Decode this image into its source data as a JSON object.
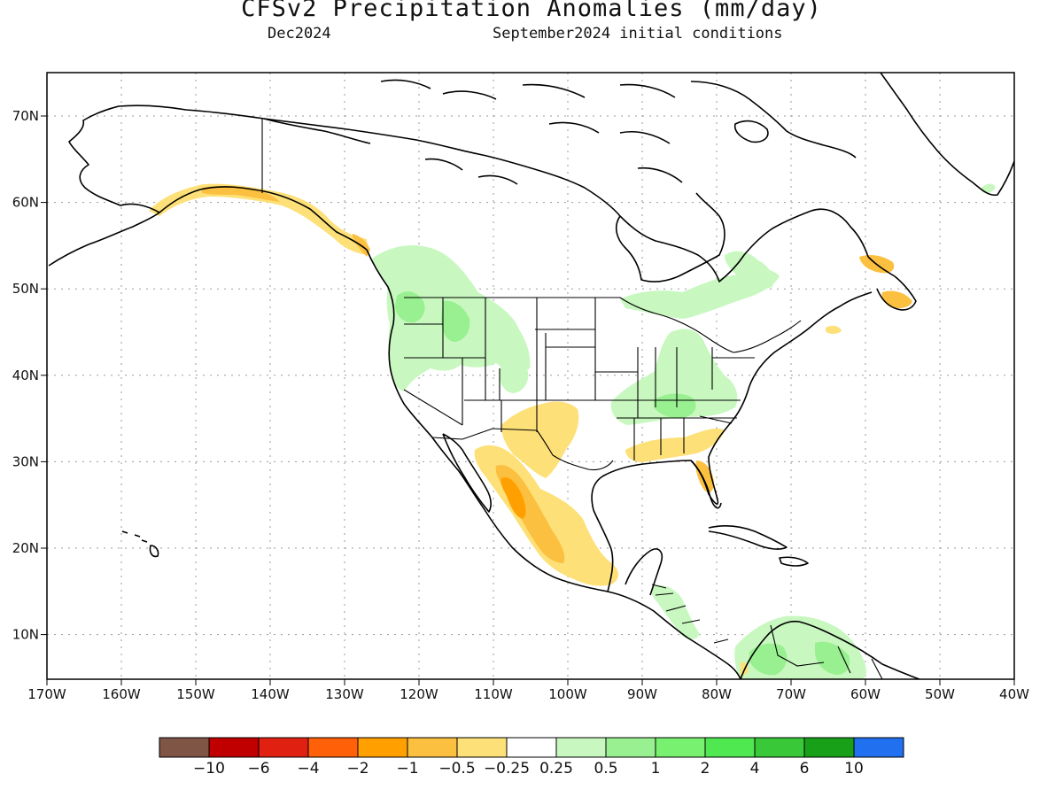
{
  "header": {
    "title": "CFSv2 Precipitation Anomalies (mm/day)",
    "lead_month": "Dec2024",
    "initial_conditions": "September2024 initial conditions"
  },
  "map": {
    "region": "North America",
    "lon_ticks": [
      "170W",
      "160W",
      "150W",
      "140W",
      "130W",
      "120W",
      "110W",
      "100W",
      "90W",
      "80W",
      "70W",
      "60W",
      "50W",
      "40W"
    ],
    "lat_ticks": [
      "70N",
      "60N",
      "50N",
      "40N",
      "30N",
      "20N",
      "10N"
    ],
    "land_color": "#ffffff",
    "outline_color": "#000000",
    "grid": "dotted"
  },
  "colorbar": {
    "colors": [
      "#7f5545",
      "#c00000",
      "#e02010",
      "#ff6008",
      "#ffa000",
      "#fcc040",
      "#fde078",
      "#ffffff",
      "#c8f8c0",
      "#98f090",
      "#78f070",
      "#50e850",
      "#38c838",
      "#18a018",
      "#2070f0"
    ],
    "labels": [
      "−10",
      "−6",
      "−4",
      "−2",
      "−1",
      "−0.5",
      "−0.25",
      "0.25",
      "0.5",
      "1",
      "2",
      "4",
      "6",
      "10"
    ]
  },
  "anomaly_regions": [
    {
      "name": "Pacific Northwest / Northern Rockies",
      "sign": "wet",
      "level": "0.25 to 1"
    },
    {
      "name": "Ohio Valley / Great Lakes",
      "sign": "wet",
      "level": "0.25 to 1"
    },
    {
      "name": "Central America / northern South America",
      "sign": "wet",
      "level": "0.25 to 2"
    },
    {
      "name": "Southern Alaska coast",
      "sign": "dry",
      "level": "-0.25 to -1"
    },
    {
      "name": "Southwest US / Southern Plains",
      "sign": "dry",
      "level": "-0.25 to -0.5"
    },
    {
      "name": "Western Mexico",
      "sign": "dry",
      "level": "-0.5 to -2"
    },
    {
      "name": "Gulf Coast / Florida",
      "sign": "dry",
      "level": "-0.25 to -1"
    },
    {
      "name": "Newfoundland",
      "sign": "dry",
      "level": "-0.25 to -1"
    }
  ]
}
